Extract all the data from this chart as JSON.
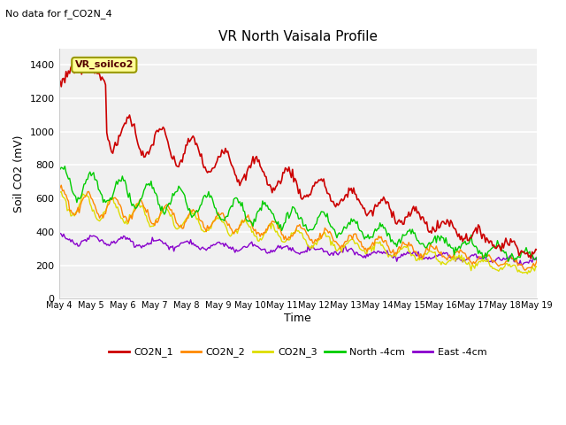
{
  "title": "VR North Vaisala Profile",
  "subtitle": "No data for f_CO2N_4",
  "ylabel": "Soil CO2 (mV)",
  "xlabel": "Time",
  "annotation": "VR_soilco2",
  "ylim": [
    0,
    1500
  ],
  "yticks": [
    0,
    200,
    400,
    600,
    800,
    1000,
    1200,
    1400
  ],
  "xtick_labels": [
    "May 4",
    "May 5",
    "May 6",
    "May 7",
    "May 8",
    "May 9",
    "May 10",
    "May 11",
    "May 12",
    "May 13",
    "May 14",
    "May 15",
    "May 16",
    "May 17",
    "May 18",
    "May 19"
  ],
  "fig_bg_color": "#ffffff",
  "plot_bg_color": "#f0f0f0",
  "grid_color": "#ffffff",
  "series_colors": {
    "CO2N_1": "#cc0000",
    "CO2N_2": "#ff8800",
    "CO2N_3": "#dddd00",
    "North_4cm": "#00cc00",
    "East_4cm": "#8800cc"
  },
  "legend_labels": [
    "CO2N_1",
    "CO2N_2",
    "CO2N_3",
    "North -4cm",
    "East -4cm"
  ],
  "legend_colors": [
    "#cc0000",
    "#ff8800",
    "#dddd00",
    "#00cc00",
    "#8800cc"
  ]
}
